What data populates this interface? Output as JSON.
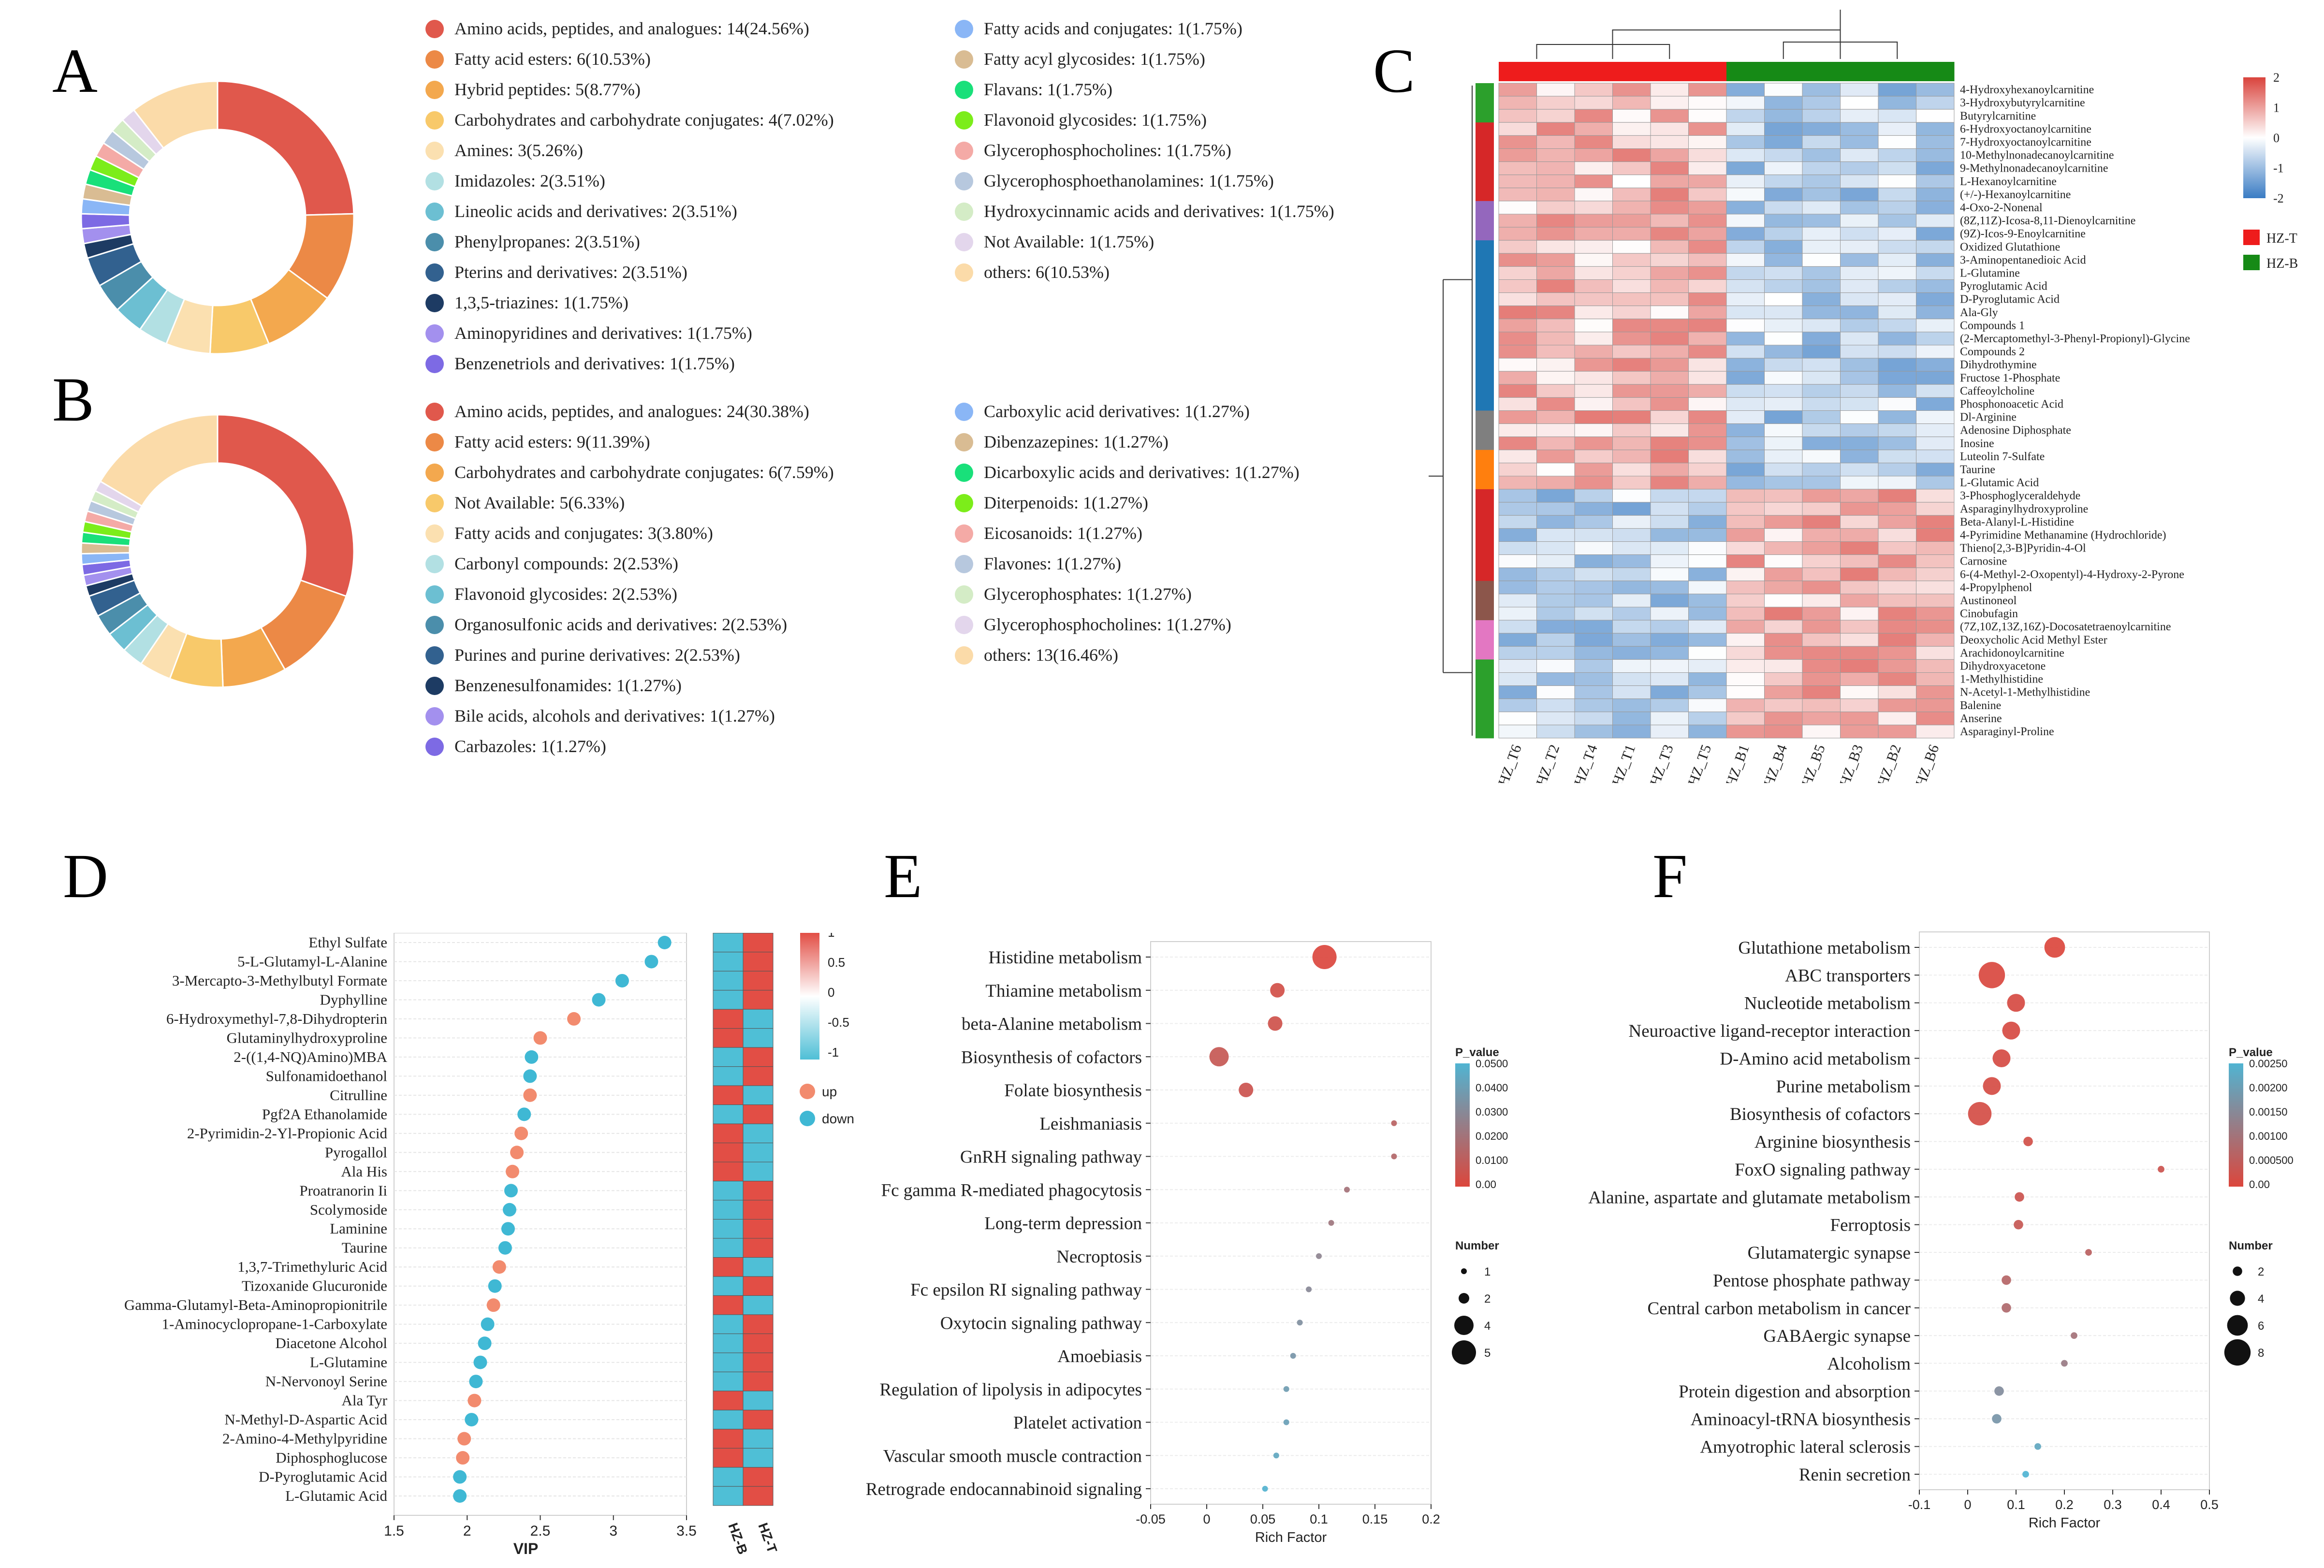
{
  "panel_labels": {
    "A": "A",
    "B": "B",
    "C": "C",
    "D": "D",
    "E": "E",
    "F": "F"
  },
  "chart_data": [
    {
      "id": "A",
      "type": "pie",
      "donut": true,
      "slices": [
        {
          "label": "Amino acids, peptides, and analogues: 14(24.56%)",
          "value": 14,
          "color": "#e0584c"
        },
        {
          "label": "Fatty acid esters: 6(10.53%)",
          "value": 6,
          "color": "#ec8946"
        },
        {
          "label": "Hybrid peptides: 5(8.77%)",
          "value": 5,
          "color": "#f3a84e"
        },
        {
          "label": "Carbohydrates and carbohydrate conjugates: 4(7.02%)",
          "value": 4,
          "color": "#f8c96a"
        },
        {
          "label": "Amines: 3(5.26%)",
          "value": 3,
          "color": "#fbe0b0"
        },
        {
          "label": "Imidazoles: 2(3.51%)",
          "value": 2,
          "color": "#b2e0e3"
        },
        {
          "label": "Lineolic acids and derivatives: 2(3.51%)",
          "value": 2,
          "color": "#6cbfd2"
        },
        {
          "label": "Phenylpropanes: 2(3.51%)",
          "value": 2,
          "color": "#4b8eab"
        },
        {
          "label": "Pterins and derivatives: 2(3.51%)",
          "value": 2,
          "color": "#32618f"
        },
        {
          "label": "1,3,5-triazines: 1(1.75%)",
          "value": 1,
          "color": "#1d3b63"
        },
        {
          "label": "Aminopyridines and derivatives: 1(1.75%)",
          "value": 1,
          "color": "#a390ee"
        },
        {
          "label": "Benzenetriols and derivatives: 1(1.75%)",
          "value": 1,
          "color": "#7d6ae4"
        },
        {
          "label": "Fatty acids and conjugates: 1(1.75%)",
          "value": 1,
          "color": "#8ab6f6"
        },
        {
          "label": "Fatty acyl glycosides: 1(1.75%)",
          "value": 1,
          "color": "#d9bc93"
        },
        {
          "label": "Flavans: 1(1.75%)",
          "value": 1,
          "color": "#19e07a"
        },
        {
          "label": "Flavonoid glycosides: 1(1.75%)",
          "value": 1,
          "color": "#7ced1a"
        },
        {
          "label": "Glycerophosphocholines: 1(1.75%)",
          "value": 1,
          "color": "#f4aaa6"
        },
        {
          "label": "Glycerophosphoethanolamines: 1(1.75%)",
          "value": 1,
          "color": "#b7c8de"
        },
        {
          "label": "Hydroxycinnamic acids and derivatives: 1(1.75%)",
          "value": 1,
          "color": "#d4ecc6"
        },
        {
          "label": "Not Available: 1(1.75%)",
          "value": 1,
          "color": "#e3d6ec"
        },
        {
          "label": "others: 6(10.53%)",
          "value": 6,
          "color": "#fbdba9"
        }
      ]
    },
    {
      "id": "B",
      "type": "pie",
      "donut": true,
      "slices": [
        {
          "label": "Amino acids, peptides, and analogues: 24(30.38%)",
          "value": 24,
          "color": "#e0584c"
        },
        {
          "label": "Fatty acid esters: 9(11.39%)",
          "value": 9,
          "color": "#ec8946"
        },
        {
          "label": "Carbohydrates and carbohydrate conjugates: 6(7.59%)",
          "value": 6,
          "color": "#f3a84e"
        },
        {
          "label": "Not Available: 5(6.33%)",
          "value": 5,
          "color": "#f8c96a"
        },
        {
          "label": "Fatty acids and conjugates: 3(3.80%)",
          "value": 3,
          "color": "#fbe0b0"
        },
        {
          "label": "Carbonyl compounds: 2(2.53%)",
          "value": 2,
          "color": "#b2e0e3"
        },
        {
          "label": "Flavonoid glycosides: 2(2.53%)",
          "value": 2,
          "color": "#6cbfd2"
        },
        {
          "label": "Organosulfonic acids and derivatives: 2(2.53%)",
          "value": 2,
          "color": "#4b8eab"
        },
        {
          "label": "Purines and purine derivatives: 2(2.53%)",
          "value": 2,
          "color": "#32618f"
        },
        {
          "label": "Benzenesulfonamides: 1(1.27%)",
          "value": 1,
          "color": "#1d3b63"
        },
        {
          "label": "Bile acids, alcohols and derivatives: 1(1.27%)",
          "value": 1,
          "color": "#a390ee"
        },
        {
          "label": "Carbazoles: 1(1.27%)",
          "value": 1,
          "color": "#7d6ae4"
        },
        {
          "label": "Carboxylic acid derivatives: 1(1.27%)",
          "value": 1,
          "color": "#8ab6f6"
        },
        {
          "label": "Dibenzazepines: 1(1.27%)",
          "value": 1,
          "color": "#d9bc93"
        },
        {
          "label": "Dicarboxylic acids and derivatives: 1(1.27%)",
          "value": 1,
          "color": "#19e07a"
        },
        {
          "label": "Diterpenoids: 1(1.27%)",
          "value": 1,
          "color": "#7ced1a"
        },
        {
          "label": "Eicosanoids: 1(1.27%)",
          "value": 1,
          "color": "#f4aaa6"
        },
        {
          "label": "Flavones: 1(1.27%)",
          "value": 1,
          "color": "#b7c8de"
        },
        {
          "label": "Glycerophosphates: 1(1.27%)",
          "value": 1,
          "color": "#d4ecc6"
        },
        {
          "label": "Glycerophosphocholines: 1(1.27%)",
          "value": 1,
          "color": "#e3d6ec"
        },
        {
          "label": "others: 13(16.46%)",
          "value": 13,
          "color": "#fbdba9"
        }
      ]
    },
    {
      "id": "C",
      "type": "heatmap",
      "columns": [
        "HZ_T6",
        "HZ_T2",
        "HZ_T4",
        "HZ_T1",
        "HZ_T3",
        "HZ_T5",
        "HZ_B1",
        "HZ_B4",
        "HZ_B5",
        "HZ_B3",
        "HZ_B2",
        "HZ_B6"
      ],
      "column_groups": [
        "HZ-T",
        "HZ-T",
        "HZ-T",
        "HZ-T",
        "HZ-T",
        "HZ-T",
        "HZ-B",
        "HZ-B",
        "HZ-B",
        "HZ-B",
        "HZ-B",
        "HZ-B"
      ],
      "rows": [
        "4-Hydroxyhexanoylcarnitine",
        "3-Hydroxybutyrylcarnitine",
        "Butyrylcarnitine",
        "6-Hydroxyoctanoylcarnitine",
        "7-Hydroxyoctanoylcarnitine",
        "10-Methylnonadecanoylcarnitine",
        "9-Methylnonadecanoylcarnitine",
        "L-Hexanoylcarnitine",
        "(+/-)-Hexanoylcarnitine",
        "4-Oxo-2-Nonenal",
        "(8Z,11Z)-Icosa-8,11-Dienoylcarnitine",
        "(9Z)-Icos-9-Enoylcarnitine",
        "Oxidized Glutathione",
        "3-Aminopentanedioic Acid",
        "L-Glutamine",
        "Pyroglutamic Acid",
        "D-Pyroglutamic Acid",
        "Ala-Gly",
        "Compounds 1",
        "(2-Mercaptomethyl-3-Phenyl-Propionyl)-Glycine",
        "Compounds 2",
        "Dihydrothymine",
        "Fructose 1-Phosphate",
        "Caffeoylcholine",
        "Phosphonoacetic Acid",
        "Dl-Arginine",
        "Adenosine Diphosphate",
        "Inosine",
        "Luteolin 7-Sulfate",
        "Taurine",
        "L-Glutamic Acid",
        "3-Phosphoglyceraldehyde",
        "Asparaginylhydroxyproline",
        "Beta-Alanyl-L-Histidine",
        "4-Pyrimidine Methanamine (Hydrochloride)",
        "Thieno[2,3-B]Pyridin-4-Ol",
        "Carnosine",
        "6-(4-Methyl-2-Oxopentyl)-4-Hydroxy-2-Pyrone",
        "4-Propylphenol",
        "Austinoneol",
        "Cinobufagin",
        "(7Z,10Z,13Z,16Z)-Docosatetraenoylcarnitine",
        "Deoxycholic Acid Methyl Ester",
        "Arachidonoylcarnitine",
        "Dihydroxyacetone",
        "1-Methylhistidine",
        "N-Acetyl-1-Methylhistidine",
        "Balenine",
        "Anserine",
        "Asparaginyl-Proline"
      ],
      "row_cluster_colors": [
        "#2ca02c",
        "#2ca02c",
        "#2ca02c",
        "#d62728",
        "#d62728",
        "#d62728",
        "#d62728",
        "#d62728",
        "#d62728",
        "#9467bd",
        "#9467bd",
        "#9467bd",
        "#1f77b4",
        "#1f77b4",
        "#1f77b4",
        "#1f77b4",
        "#1f77b4",
        "#1f77b4",
        "#1f77b4",
        "#1f77b4",
        "#1f77b4",
        "#1f77b4",
        "#1f77b4",
        "#1f77b4",
        "#1f77b4",
        "#7f7f7f",
        "#7f7f7f",
        "#7f7f7f",
        "#ff7f0e",
        "#ff7f0e",
        "#ff7f0e",
        "#d62728",
        "#d62728",
        "#d62728",
        "#d62728",
        "#d62728",
        "#d62728",
        "#d62728",
        "#8c564b",
        "#8c564b",
        "#8c564b",
        "#e377c2",
        "#e377c2",
        "#e377c2",
        "#2ca02c",
        "#2ca02c",
        "#2ca02c",
        "#2ca02c",
        "#2ca02c",
        "#2ca02c"
      ],
      "color_scale": {
        "min": -2,
        "max": 2,
        "ticks": [
          "2",
          "1",
          "0",
          "-1",
          "-2"
        ],
        "low": "#3a7cc4",
        "mid": "#ffffff",
        "high": "#d9433c"
      },
      "group_legend": [
        {
          "label": "HZ-T",
          "color": "#ee1c1c"
        },
        {
          "label": "HZ-B",
          "color": "#168a16"
        }
      ]
    },
    {
      "id": "D",
      "type": "scatter",
      "xlabel": "VIP",
      "xlim": [
        1.5,
        3.5
      ],
      "xticks": [
        "1.5",
        "2",
        "2.5",
        "3",
        "3.5"
      ],
      "points": [
        {
          "label": "Ethyl Sulfate",
          "vip": 3.35,
          "dir": "down"
        },
        {
          "label": "5-L-Glutamyl-L-Alanine",
          "vip": 3.26,
          "dir": "down"
        },
        {
          "label": "3-Mercapto-3-Methylbutyl Formate",
          "vip": 3.06,
          "dir": "down"
        },
        {
          "label": "Dyphylline",
          "vip": 2.9,
          "dir": "down"
        },
        {
          "label": "6-Hydroxymethyl-7,8-Dihydropterin",
          "vip": 2.73,
          "dir": "up"
        },
        {
          "label": "Glutaminylhydroxyproline",
          "vip": 2.5,
          "dir": "up"
        },
        {
          "label": "2-((1,4-NQ)Amino)MBA",
          "vip": 2.44,
          "dir": "down"
        },
        {
          "label": "Sulfonamidoethanol",
          "vip": 2.43,
          "dir": "down"
        },
        {
          "label": "Citrulline",
          "vip": 2.43,
          "dir": "up"
        },
        {
          "label": "Pgf2A Ethanolamide",
          "vip": 2.39,
          "dir": "down"
        },
        {
          "label": "2-Pyrimidin-2-Yl-Propionic Acid",
          "vip": 2.37,
          "dir": "up"
        },
        {
          "label": "Pyrogallol",
          "vip": 2.34,
          "dir": "up"
        },
        {
          "label": "Ala His",
          "vip": 2.31,
          "dir": "up"
        },
        {
          "label": "Proatranorin Ii",
          "vip": 2.3,
          "dir": "down"
        },
        {
          "label": "Scolymoside",
          "vip": 2.29,
          "dir": "down"
        },
        {
          "label": "Laminine",
          "vip": 2.28,
          "dir": "down"
        },
        {
          "label": "Taurine",
          "vip": 2.26,
          "dir": "down"
        },
        {
          "label": "1,3,7-Trimethyluric Acid",
          "vip": 2.22,
          "dir": "up"
        },
        {
          "label": "Tizoxanide Glucuronide",
          "vip": 2.19,
          "dir": "down"
        },
        {
          "label": "Gamma-Glutamyl-Beta-Aminopropionitrile",
          "vip": 2.18,
          "dir": "up"
        },
        {
          "label": "1-Aminocyclopropane-1-Carboxylate",
          "vip": 2.14,
          "dir": "down"
        },
        {
          "label": "Diacetone Alcohol",
          "vip": 2.12,
          "dir": "down"
        },
        {
          "label": "L-Glutamine",
          "vip": 2.09,
          "dir": "down"
        },
        {
          "label": "N-Nervonoyl Serine",
          "vip": 2.06,
          "dir": "down"
        },
        {
          "label": "Ala Tyr",
          "vip": 2.05,
          "dir": "up"
        },
        {
          "label": "N-Methyl-D-Aspartic Acid",
          "vip": 2.03,
          "dir": "down"
        },
        {
          "label": "2-Amino-4-Methylpyridine",
          "vip": 1.98,
          "dir": "up"
        },
        {
          "label": "Diphosphoglucose",
          "vip": 1.97,
          "dir": "up"
        },
        {
          "label": "D-Pyroglutamic Acid",
          "vip": 1.95,
          "dir": "down"
        },
        {
          "label": "L-Glutamic Acid",
          "vip": 1.95,
          "dir": "down"
        }
      ],
      "legend": [
        {
          "label": "up",
          "color": "#f28b6e"
        },
        {
          "label": "down",
          "color": "#3fb8d4"
        }
      ],
      "heat_columns": [
        "HZ-B",
        "HZ-T"
      ],
      "color_ticks": [
        "1",
        "0.5",
        "0",
        "-0.5",
        "-1"
      ]
    },
    {
      "id": "E",
      "type": "scatter",
      "xlabel": "Rich Factor",
      "xlim": [
        -0.05,
        0.2
      ],
      "xticks": [
        "-0.05",
        "0",
        "0.05",
        "0.1",
        "0.15",
        "0.2"
      ],
      "pvalue_title": "P_value",
      "pvalue_ticks": [
        "0.0500",
        "0.0400",
        "0.0300",
        "0.0200",
        "0.0100",
        "0.00"
      ],
      "size_title": "Number",
      "size_ticks": [
        "1",
        "2",
        "4",
        "5"
      ],
      "pathways": [
        {
          "label": "Histidine metabolism",
          "rich": 0.105,
          "number": 5,
          "p": 0.0005
        },
        {
          "label": "Thiamine metabolism",
          "rich": 0.063,
          "number": 3,
          "p": 0.004
        },
        {
          "label": "beta-Alanine metabolism",
          "rich": 0.061,
          "number": 3,
          "p": 0.005
        },
        {
          "label": "Biosynthesis of cofactors",
          "rich": 0.011,
          "number": 4,
          "p": 0.008
        },
        {
          "label": "Folate biosynthesis",
          "rich": 0.035,
          "number": 3,
          "p": 0.006
        },
        {
          "label": "Leishmaniasis",
          "rich": 0.167,
          "number": 1,
          "p": 0.013
        },
        {
          "label": "GnRH signaling pathway",
          "rich": 0.167,
          "number": 1,
          "p": 0.015
        },
        {
          "label": "Fc gamma R-mediated phagocytosis",
          "rich": 0.125,
          "number": 1,
          "p": 0.02
        },
        {
          "label": "Long-term depression",
          "rich": 0.111,
          "number": 1,
          "p": 0.022
        },
        {
          "label": "Necroptosis",
          "rich": 0.1,
          "number": 1,
          "p": 0.028
        },
        {
          "label": "Fc epsilon RI signaling pathway",
          "rich": 0.091,
          "number": 1,
          "p": 0.03
        },
        {
          "label": "Oxytocin signaling pathway",
          "rich": 0.083,
          "number": 1,
          "p": 0.033
        },
        {
          "label": "Amoebiasis",
          "rich": 0.077,
          "number": 1,
          "p": 0.036
        },
        {
          "label": "Regulation of lipolysis in adipocytes",
          "rich": 0.071,
          "number": 1,
          "p": 0.039
        },
        {
          "label": "Platelet activation",
          "rich": 0.071,
          "number": 1,
          "p": 0.041
        },
        {
          "label": "Vascular smooth muscle contraction",
          "rich": 0.062,
          "number": 1,
          "p": 0.044
        },
        {
          "label": "Retrograde endocannabinoid signaling",
          "rich": 0.052,
          "number": 1,
          "p": 0.049
        }
      ]
    },
    {
      "id": "F",
      "type": "scatter",
      "xlabel": "Rich Factor",
      "xlim": [
        -0.1,
        0.5
      ],
      "xticks": [
        "-0.1",
        "0",
        "0.1",
        "0.2",
        "0.3",
        "0.4",
        "0.5"
      ],
      "pvalue_title": "P_value",
      "pvalue_ticks": [
        "0.00250",
        "0.00200",
        "0.00150",
        "0.00100",
        "0.000500",
        "0.00"
      ],
      "size_title": "Number",
      "size_ticks": [
        "2",
        "4",
        "6",
        "8"
      ],
      "pathways": [
        {
          "label": "Glutathione metabolism",
          "rich": 0.18,
          "number": 6,
          "p": 2e-05
        },
        {
          "label": "ABC transporters",
          "rich": 0.05,
          "number": 8,
          "p": 5e-05
        },
        {
          "label": "Nucleotide metabolism",
          "rich": 0.1,
          "number": 5,
          "p": 0.0001
        },
        {
          "label": "Neuroactive ligand-receptor interaction",
          "rich": 0.09,
          "number": 5,
          "p": 0.0001
        },
        {
          "label": "D-Amino acid metabolism",
          "rich": 0.07,
          "number": 5,
          "p": 0.00012
        },
        {
          "label": "Purine metabolism",
          "rich": 0.05,
          "number": 5,
          "p": 0.00013
        },
        {
          "label": "Biosynthesis of cofactors",
          "rich": 0.025,
          "number": 7,
          "p": 0.00015
        },
        {
          "label": "Arginine biosynthesis",
          "rich": 0.125,
          "number": 2,
          "p": 0.0002
        },
        {
          "label": "FoxO signaling pathway",
          "rich": 0.4,
          "number": 1,
          "p": 0.0003
        },
        {
          "label": "Alanine, aspartate and glutamate metabolism",
          "rich": 0.107,
          "number": 2,
          "p": 0.0003
        },
        {
          "label": "Ferroptosis",
          "rich": 0.105,
          "number": 2,
          "p": 0.0004
        },
        {
          "label": "Glutamatergic synapse",
          "rich": 0.25,
          "number": 1,
          "p": 0.0006
        },
        {
          "label": "Pentose phosphate pathway",
          "rich": 0.08,
          "number": 2,
          "p": 0.0007
        },
        {
          "label": "Central carbon metabolism in cancer",
          "rich": 0.08,
          "number": 2,
          "p": 0.0008
        },
        {
          "label": "GABAergic synapse",
          "rich": 0.22,
          "number": 1,
          "p": 0.001
        },
        {
          "label": "Alcoholism",
          "rich": 0.2,
          "number": 1,
          "p": 0.0012
        },
        {
          "label": "Protein digestion and absorption",
          "rich": 0.065,
          "number": 2,
          "p": 0.0016
        },
        {
          "label": "Aminoacyl-tRNA biosynthesis",
          "rich": 0.06,
          "number": 2,
          "p": 0.0018
        },
        {
          "label": "Amyotrophic lateral sclerosis",
          "rich": 0.145,
          "number": 1,
          "p": 0.0022
        },
        {
          "label": "Renin secretion",
          "rich": 0.12,
          "number": 1,
          "p": 0.0025
        }
      ]
    }
  ]
}
